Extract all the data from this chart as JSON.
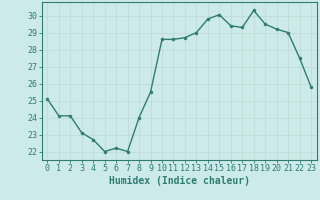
{
  "x": [
    0,
    1,
    2,
    3,
    4,
    5,
    6,
    7,
    8,
    9,
    10,
    11,
    12,
    13,
    14,
    15,
    16,
    17,
    18,
    19,
    20,
    21,
    22,
    23
  ],
  "y": [
    25.1,
    24.1,
    24.1,
    23.1,
    22.7,
    22.0,
    22.2,
    22.0,
    24.0,
    25.5,
    28.6,
    28.6,
    28.7,
    29.0,
    29.8,
    30.05,
    29.4,
    29.3,
    30.3,
    29.5,
    29.2,
    29.0,
    27.5,
    25.8
  ],
  "xlabel": "Humidex (Indice chaleur)",
  "ylim": [
    21.5,
    30.8
  ],
  "yticks": [
    22,
    23,
    24,
    25,
    26,
    27,
    28,
    29,
    30
  ],
  "xticks": [
    0,
    1,
    2,
    3,
    4,
    5,
    6,
    7,
    8,
    9,
    10,
    11,
    12,
    13,
    14,
    15,
    16,
    17,
    18,
    19,
    20,
    21,
    22,
    23
  ],
  "line_color": "#2e7d6e",
  "marker": "o",
  "marker_size": 2.0,
  "line_width": 1.0,
  "bg_color": "#cceaea",
  "grid_color": "#c0d8d8",
  "tick_color": "#2e7d6e",
  "label_color": "#2e7d6e",
  "xlabel_fontsize": 7,
  "tick_fontsize": 6,
  "xlim_left": -0.5,
  "xlim_right": 23.5
}
